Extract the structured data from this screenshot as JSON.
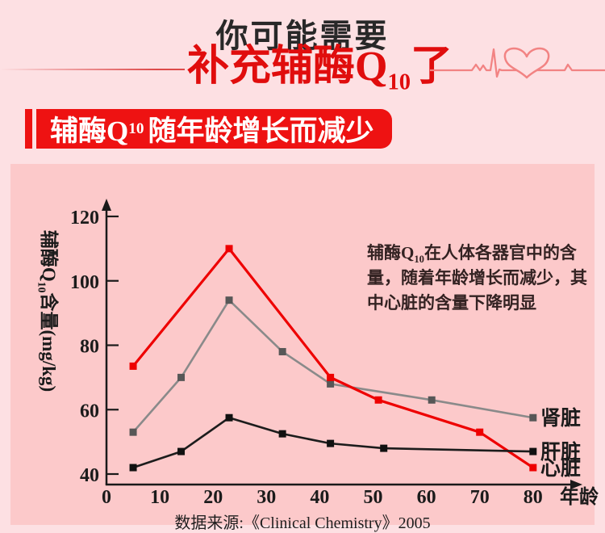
{
  "header": {
    "line1": "你可能需要",
    "line2": {
      "pre": "补充辅酶Q",
      "sub": "10",
      "post": "了"
    },
    "text_dark": "#282828",
    "accent_red": "#e00d0d",
    "ekg_color": "#f28383",
    "ekg_icon": "heartbeat-with-heart"
  },
  "banner": {
    "pre": "辅酶Q",
    "sub": "10",
    "post": "随年龄增长而减少",
    "bg": "#ee1212",
    "text_color": "#ffffff"
  },
  "panel": {
    "bg": "#fcc9ca",
    "annotation": {
      "l1_pre": "辅酶Q",
      "l1_sub": "10",
      "l1_post": "在人体各器官中的含",
      "l2": "量，随着年龄增长而减少，其",
      "l3": "中心脏的含量下降明显"
    },
    "source": "数据来源:《Clinical Chemistry》2005"
  },
  "chart_data": {
    "type": "line",
    "xlabel": "年龄",
    "ylabel": {
      "pre": "辅酶Q",
      "sub": "10",
      "post": "含量(mg/kg)"
    },
    "xticks": [
      0,
      10,
      20,
      30,
      40,
      50,
      60,
      70,
      80
    ],
    "yticks": [
      40,
      60,
      80,
      100,
      120
    ],
    "xlim": [
      0,
      88
    ],
    "ylim": [
      35,
      125
    ],
    "grid": false,
    "axis_color": "#1a1a1a",
    "legend_position": "right-of-line-ends",
    "series": [
      {
        "name": "肾脏",
        "color": "#8a8a8a",
        "marker_color": "#575757",
        "width": 2.6,
        "x": [
          5,
          14,
          23,
          33,
          42,
          61,
          80
        ],
        "values": [
          53,
          70,
          94,
          78,
          68,
          63,
          57.5
        ]
      },
      {
        "name": "心脏",
        "color": "#ee0000",
        "marker_color": "#ee0000",
        "width": 3.2,
        "x": [
          5,
          23,
          42,
          51,
          70,
          80
        ],
        "values": [
          73.5,
          110,
          70,
          63,
          53,
          42
        ]
      },
      {
        "name": "肝脏",
        "color": "#1c1c1c",
        "marker_color": "#111111",
        "width": 2.6,
        "x": [
          5,
          14,
          23,
          33,
          42,
          52,
          80
        ],
        "values": [
          42,
          47,
          57.5,
          52.5,
          49.5,
          48,
          47
        ]
      }
    ]
  }
}
